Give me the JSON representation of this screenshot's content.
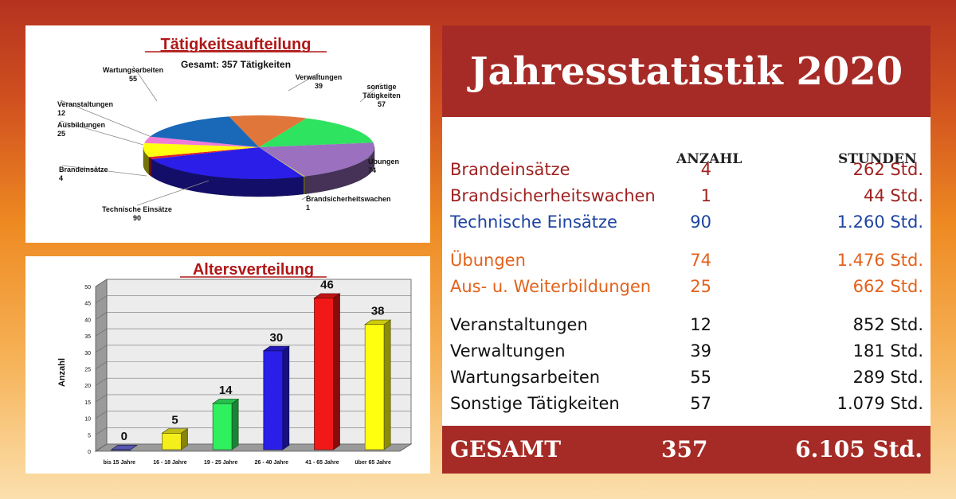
{
  "pie_chart": {
    "title": "Tätigkeitsaufteilung",
    "subtitle": "Gesamt: 357 Tätigkeiten"
  },
  "bar_chart": {
    "title": "Altersverteilung",
    "ylabel": "Anzahl"
  },
  "chart_data": [
    {
      "type": "pie",
      "title": "Tätigkeitsaufteilung",
      "subtitle": "Gesamt: 357 Tätigkeiten",
      "slices": [
        {
          "label": "Verwaltungen",
          "value": 39,
          "color": "#e0763a"
        },
        {
          "label": "sonstige Tätigkeiten",
          "value": 57,
          "color": "#2ee35f"
        },
        {
          "label": "Übungen",
          "value": 74,
          "color": "#9a70bf"
        },
        {
          "label": "Brandsicherheitswachen",
          "value": 1,
          "color": "#c7c25a"
        },
        {
          "label": "Technische Einsätze",
          "value": 90,
          "color": "#2a1ee8"
        },
        {
          "label": "Brandeinsätze",
          "value": 4,
          "color": "#e0202a"
        },
        {
          "label": "Ausbildungen",
          "value": 25,
          "color": "#ffff10"
        },
        {
          "label": "Veranstaltungen",
          "value": 12,
          "color": "#f07ad8"
        },
        {
          "label": "Wartungsarbeiten",
          "value": 55,
          "color": "#1a69b8"
        }
      ]
    },
    {
      "type": "bar",
      "title": "Altersverteilung",
      "ylabel": "Anzahl",
      "categories": [
        "bis 15 Jahre",
        "16 - 18 Jahre",
        "19 - 25 Jahre",
        "26 - 40 Jahre",
        "41 - 65 Jahre",
        "über 65 Jahre"
      ],
      "values": [
        0,
        5,
        14,
        30,
        46,
        38
      ],
      "colors": [
        "#6b6bdc",
        "#f4ee1a",
        "#2ff05f",
        "#2a1ee8",
        "#f21818",
        "#ffff10"
      ],
      "ylim": [
        0,
        50
      ],
      "yticks": [
        "0",
        "5",
        "10",
        "15",
        "20",
        "25",
        "30",
        "35",
        "40",
        "45",
        "50"
      ],
      "grid": true
    }
  ],
  "stats": {
    "title": "Jahresstatistik 2020",
    "col_count": "ANZAHL",
    "col_hours": "STUNDEN",
    "rows": [
      {
        "label": "Brandeinsätze",
        "count": "4",
        "hours": "262 Std."
      },
      {
        "label": "Brandsicherheitswachen",
        "count": "1",
        "hours": "44 Std."
      },
      {
        "label": "Technische Einsätze",
        "count": "90",
        "hours": "1.260 Std."
      },
      {
        "label": "Übungen",
        "count": "74",
        "hours": "1.476 Std."
      },
      {
        "label": "Aus- u. Weiterbildungen",
        "count": "25",
        "hours": "662 Std."
      },
      {
        "label": "Veranstaltungen",
        "count": "12",
        "hours": "852 Std."
      },
      {
        "label": "Verwaltungen",
        "count": "39",
        "hours": "181 Std."
      },
      {
        "label": "Wartungsarbeiten",
        "count": "55",
        "hours": "289 Std."
      },
      {
        "label": "Sonstige Tätigkeiten",
        "count": "57",
        "hours": "1.079 Std."
      }
    ],
    "total_label": "GESAMT",
    "total_count": "357",
    "total_hours": "6.105 Std."
  },
  "colors": {
    "header_red": "#a62b26",
    "row_red": "#9f2220",
    "row_blue": "#1d44a0",
    "row_orange": "#e2621c"
  }
}
